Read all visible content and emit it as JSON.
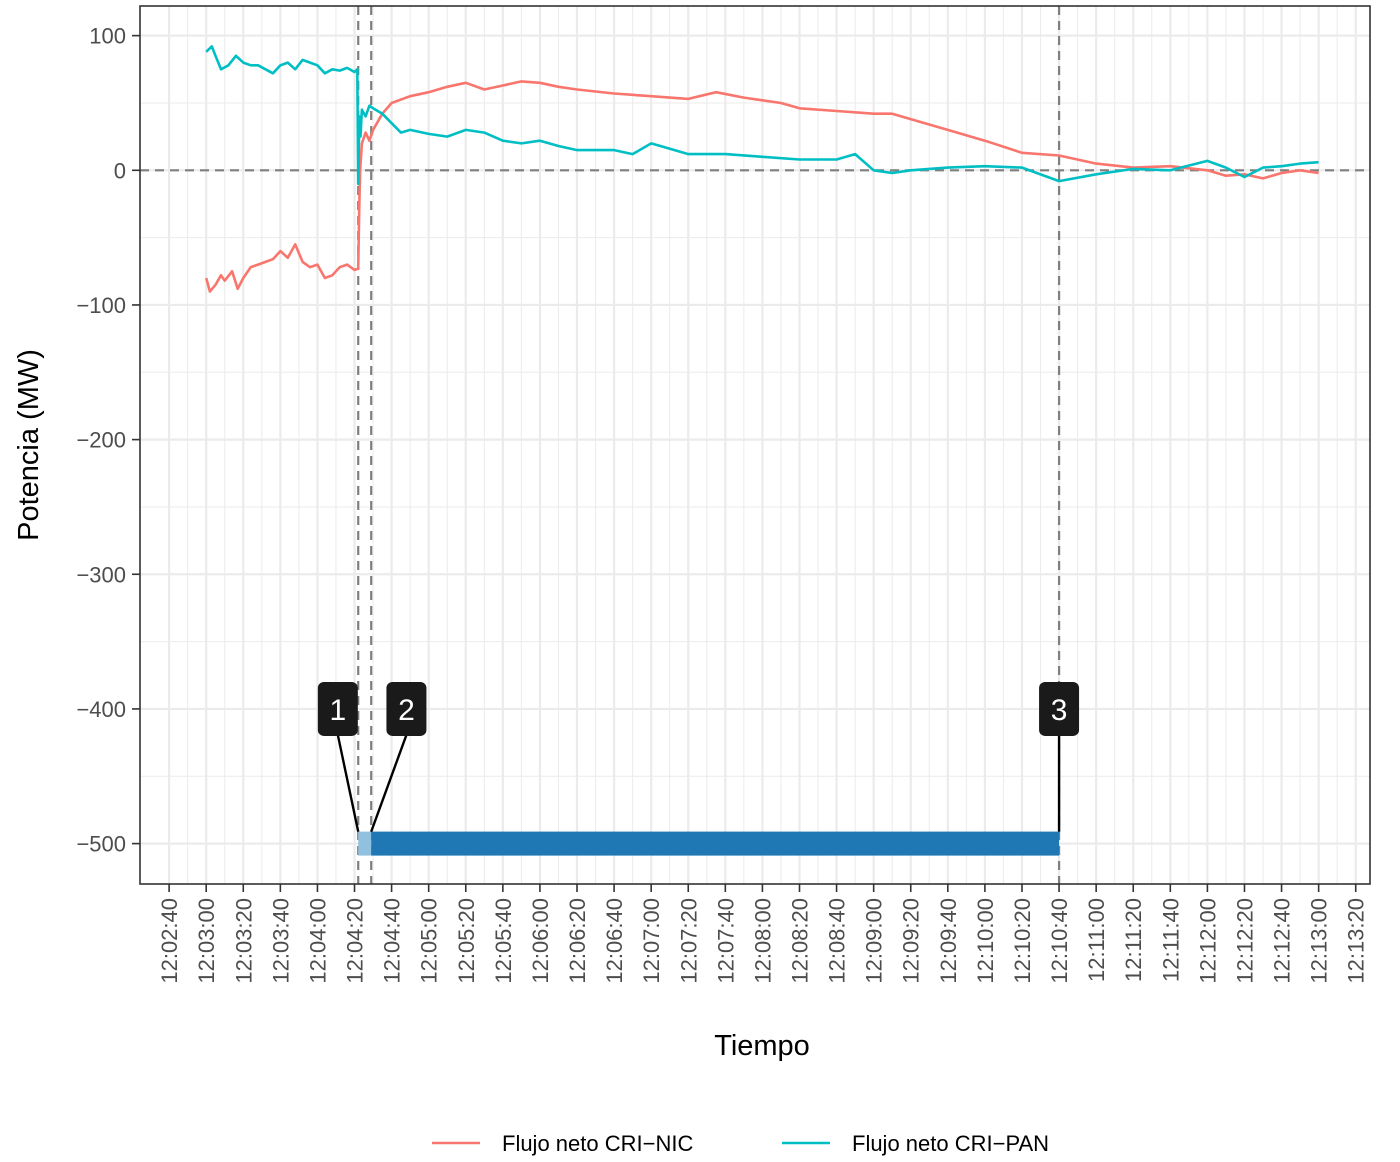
{
  "chart_data": {
    "type": "line",
    "xlabel": "Tiempo",
    "ylabel": "Potencia (MW)",
    "x_unit": "time of day (HH:MM:SS)",
    "xlim": [
      "12:02:40",
      "12:13:20"
    ],
    "ylim": [
      -530,
      122
    ],
    "y_ticks": [
      100,
      0,
      -100,
      -200,
      -300,
      -400,
      -500
    ],
    "y_tick_labels": [
      "100",
      "0",
      "−100",
      "−200",
      "−300",
      "−400",
      "−500"
    ],
    "x_ticks": [
      "12:02:40",
      "12:03:00",
      "12:03:20",
      "12:03:40",
      "12:04:00",
      "12:04:20",
      "12:04:40",
      "12:05:00",
      "12:05:20",
      "12:05:40",
      "12:06:00",
      "12:06:20",
      "12:06:40",
      "12:07:00",
      "12:07:20",
      "12:07:40",
      "12:08:00",
      "12:08:20",
      "12:08:40",
      "12:09:00",
      "12:09:20",
      "12:09:40",
      "12:10:00",
      "12:10:20",
      "12:10:40",
      "12:11:00",
      "12:11:20",
      "12:11:40",
      "12:12:00",
      "12:12:20",
      "12:12:40",
      "12:13:00",
      "12:13:20"
    ],
    "grid": true,
    "legend_position": "bottom",
    "reference_lines": {
      "horizontal": [
        0
      ],
      "vertical": [
        "12:04:22",
        "12:04:29",
        "12:10:40"
      ]
    },
    "series": [
      {
        "name": "Flujo neto CRI−NIC",
        "color": "#F8766D",
        "points": [
          [
            "12:03:00",
            -80
          ],
          [
            "12:03:02",
            -90
          ],
          [
            "12:03:05",
            -85
          ],
          [
            "12:03:08",
            -78
          ],
          [
            "12:03:10",
            -82
          ],
          [
            "12:03:14",
            -75
          ],
          [
            "12:03:17",
            -88
          ],
          [
            "12:03:20",
            -80
          ],
          [
            "12:03:24",
            -72
          ],
          [
            "12:03:28",
            -70
          ],
          [
            "12:03:32",
            -68
          ],
          [
            "12:03:36",
            -66
          ],
          [
            "12:03:40",
            -60
          ],
          [
            "12:03:44",
            -65
          ],
          [
            "12:03:48",
            -55
          ],
          [
            "12:03:52",
            -68
          ],
          [
            "12:03:56",
            -72
          ],
          [
            "12:04:00",
            -70
          ],
          [
            "12:04:04",
            -80
          ],
          [
            "12:04:08",
            -78
          ],
          [
            "12:04:12",
            -72
          ],
          [
            "12:04:16",
            -70
          ],
          [
            "12:04:20",
            -74
          ],
          [
            "12:04:22",
            -73
          ],
          [
            "12:04:22.5",
            -30
          ],
          [
            "12:04:23",
            0
          ],
          [
            "12:04:24",
            20
          ],
          [
            "12:04:26",
            28
          ],
          [
            "12:04:28",
            22
          ],
          [
            "12:04:30",
            30
          ],
          [
            "12:04:35",
            42
          ],
          [
            "12:04:40",
            50
          ],
          [
            "12:04:50",
            55
          ],
          [
            "12:05:00",
            58
          ],
          [
            "12:05:10",
            62
          ],
          [
            "12:05:20",
            65
          ],
          [
            "12:05:30",
            60
          ],
          [
            "12:05:40",
            63
          ],
          [
            "12:05:50",
            66
          ],
          [
            "12:06:00",
            65
          ],
          [
            "12:06:10",
            62
          ],
          [
            "12:06:20",
            60
          ],
          [
            "12:06:40",
            57
          ],
          [
            "12:07:00",
            55
          ],
          [
            "12:07:20",
            53
          ],
          [
            "12:07:35",
            58
          ],
          [
            "12:07:50",
            54
          ],
          [
            "12:08:00",
            52
          ],
          [
            "12:08:10",
            50
          ],
          [
            "12:08:20",
            46
          ],
          [
            "12:08:40",
            44
          ],
          [
            "12:09:00",
            42
          ],
          [
            "12:09:10",
            42
          ],
          [
            "12:09:20",
            38
          ],
          [
            "12:09:40",
            30
          ],
          [
            "12:10:00",
            22
          ],
          [
            "12:10:20",
            13
          ],
          [
            "12:10:40",
            11
          ],
          [
            "12:11:00",
            5
          ],
          [
            "12:11:20",
            2
          ],
          [
            "12:11:40",
            3
          ],
          [
            "12:12:00",
            0
          ],
          [
            "12:12:10",
            -4
          ],
          [
            "12:12:20",
            -3
          ],
          [
            "12:12:30",
            -6
          ],
          [
            "12:12:40",
            -2
          ],
          [
            "12:12:50",
            0
          ],
          [
            "12:13:00",
            -2
          ]
        ]
      },
      {
        "name": "Flujo neto CRI−PAN",
        "color": "#00BFC4",
        "points": [
          [
            "12:03:00",
            88
          ],
          [
            "12:03:03",
            92
          ],
          [
            "12:03:05",
            85
          ],
          [
            "12:03:08",
            75
          ],
          [
            "12:03:12",
            78
          ],
          [
            "12:03:16",
            85
          ],
          [
            "12:03:20",
            80
          ],
          [
            "12:03:24",
            78
          ],
          [
            "12:03:28",
            78
          ],
          [
            "12:03:32",
            75
          ],
          [
            "12:03:36",
            72
          ],
          [
            "12:03:40",
            78
          ],
          [
            "12:03:44",
            80
          ],
          [
            "12:03:48",
            75
          ],
          [
            "12:03:52",
            82
          ],
          [
            "12:03:56",
            80
          ],
          [
            "12:04:00",
            78
          ],
          [
            "12:04:04",
            72
          ],
          [
            "12:04:08",
            75
          ],
          [
            "12:04:12",
            74
          ],
          [
            "12:04:16",
            76
          ],
          [
            "12:04:20",
            73
          ],
          [
            "12:04:21.5",
            75
          ],
          [
            "12:04:22",
            -10
          ],
          [
            "12:04:22.6",
            40
          ],
          [
            "12:04:23.2",
            25
          ],
          [
            "12:04:24",
            45
          ],
          [
            "12:04:26",
            40
          ],
          [
            "12:04:28",
            48
          ],
          [
            "12:04:30",
            46
          ],
          [
            "12:04:35",
            42
          ],
          [
            "12:04:40",
            35
          ],
          [
            "12:04:45",
            28
          ],
          [
            "12:04:50",
            30
          ],
          [
            "12:05:00",
            27
          ],
          [
            "12:05:10",
            25
          ],
          [
            "12:05:20",
            30
          ],
          [
            "12:05:30",
            28
          ],
          [
            "12:05:40",
            22
          ],
          [
            "12:05:50",
            20
          ],
          [
            "12:06:00",
            22
          ],
          [
            "12:06:10",
            18
          ],
          [
            "12:06:20",
            15
          ],
          [
            "12:06:40",
            15
          ],
          [
            "12:06:50",
            12
          ],
          [
            "12:07:00",
            20
          ],
          [
            "12:07:05",
            18
          ],
          [
            "12:07:20",
            12
          ],
          [
            "12:07:40",
            12
          ],
          [
            "12:08:00",
            10
          ],
          [
            "12:08:20",
            8
          ],
          [
            "12:08:40",
            8
          ],
          [
            "12:08:50",
            12
          ],
          [
            "12:09:00",
            0
          ],
          [
            "12:09:10",
            -2
          ],
          [
            "12:09:20",
            0
          ],
          [
            "12:09:40",
            2
          ],
          [
            "12:10:00",
            3
          ],
          [
            "12:10:20",
            2
          ],
          [
            "12:10:40",
            -8
          ],
          [
            "12:11:00",
            -3
          ],
          [
            "12:11:20",
            1
          ],
          [
            "12:11:40",
            0
          ],
          [
            "12:12:00",
            7
          ],
          [
            "12:12:10",
            2
          ],
          [
            "12:12:20",
            -5
          ],
          [
            "12:12:30",
            2
          ],
          [
            "12:12:40",
            3
          ],
          [
            "12:12:50",
            5
          ],
          [
            "12:13:00",
            6
          ]
        ]
      }
    ],
    "timeline_bar": {
      "y": -500,
      "segments": [
        {
          "start": "12:04:22",
          "end": "12:04:29",
          "color": "#92C0DF"
        },
        {
          "start": "12:04:29",
          "end": "12:10:40",
          "color": "#1F78B4"
        }
      ]
    },
    "markers": [
      {
        "label": "1",
        "anchor_time": "12:04:22",
        "label_time": "12:04:11",
        "anchor_y": -500,
        "label_y": -400
      },
      {
        "label": "2",
        "anchor_time": "12:04:29",
        "label_time": "12:04:48",
        "anchor_y": -500,
        "label_y": -400
      },
      {
        "label": "3",
        "anchor_time": "12:10:40",
        "label_time": "12:10:40",
        "anchor_y": -500,
        "label_y": -400
      }
    ]
  }
}
